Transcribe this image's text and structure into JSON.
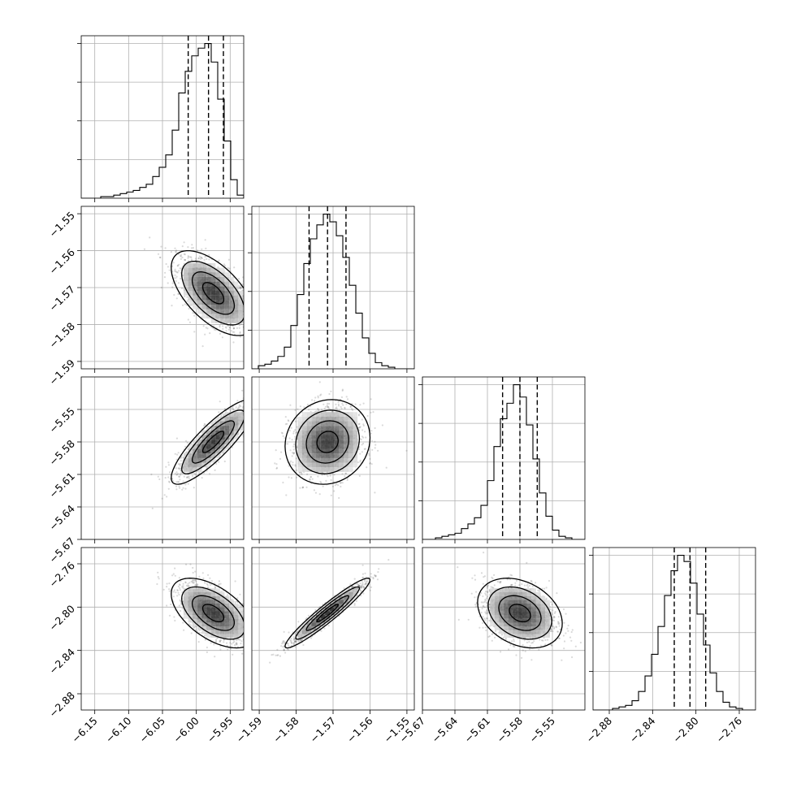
{
  "chart_data": {
    "type": "corner",
    "parameters": [
      {
        "index": 0,
        "mean": -5.975,
        "sd": 0.027,
        "range": [
          -6.17,
          -5.93
        ],
        "ticks": [
          "−6.15",
          "−6.10",
          "−6.05",
          "−6.00",
          "−5.95"
        ],
        "tick_values": [
          -6.15,
          -6.1,
          -6.05,
          -6.0,
          -5.95
        ],
        "quantiles": [
          -6.012,
          -5.982,
          -5.96
        ],
        "histogram_bin_counts": [
          0,
          0,
          0,
          1,
          1,
          2,
          3,
          4,
          5,
          7,
          9,
          14,
          20,
          28,
          44,
          68,
          82,
          92,
          97,
          100,
          88,
          64,
          37,
          12,
          2
        ]
      },
      {
        "index": 1,
        "mean": -1.5715,
        "sd": 0.005,
        "range": [
          -1.592,
          -1.548
        ],
        "ticks": [
          "−1.59",
          "−1.58",
          "−1.57",
          "−1.56",
          "−1.55"
        ],
        "tick_values": [
          -1.59,
          -1.58,
          -1.57,
          -1.56,
          -1.55
        ],
        "quantiles": [
          -1.5765,
          -1.5715,
          -1.5665
        ],
        "histogram_bin_counts": [
          0,
          2,
          3,
          5,
          8,
          14,
          28,
          48,
          68,
          84,
          93,
          100,
          95,
          86,
          72,
          54,
          36,
          20,
          10,
          4,
          2,
          1,
          0,
          0,
          0
        ]
      },
      {
        "index": 2,
        "mean": -5.58,
        "sd": 0.017,
        "range": [
          -5.67,
          -5.52
        ],
        "ticks": [
          "−5.67",
          "−5.64",
          "−5.61",
          "−5.58",
          "−5.55"
        ],
        "tick_values": [
          -5.67,
          -5.64,
          -5.61,
          -5.58,
          -5.55
        ],
        "quantiles": [
          -5.596,
          -5.58,
          -5.564
        ],
        "histogram_bin_counts": [
          0,
          0,
          1,
          2,
          3,
          4,
          7,
          10,
          14,
          22,
          38,
          60,
          78,
          88,
          100,
          92,
          74,
          52,
          30,
          15,
          6,
          2,
          1,
          0,
          0
        ]
      },
      {
        "index": 3,
        "mean": -2.8055,
        "sd": 0.014,
        "range": [
          -2.895,
          -2.745
        ],
        "ticks": [
          "−2.88",
          "−2.84",
          "−2.80",
          "−2.76"
        ],
        "tick_values": [
          -2.88,
          -2.84,
          -2.8,
          -2.76
        ],
        "quantiles": [
          -2.82,
          -2.8055,
          -2.791
        ],
        "histogram_bin_counts": [
          0,
          0,
          0,
          1,
          2,
          3,
          6,
          12,
          22,
          36,
          54,
          74,
          90,
          100,
          96,
          82,
          62,
          42,
          24,
          12,
          5,
          2,
          1,
          0,
          0
        ]
      }
    ],
    "correlations": {
      "1,0": -0.6,
      "2,0": 0.85,
      "2,1": 0.1,
      "3,0": -0.55,
      "3,1": 0.95,
      "3,2": -0.3
    },
    "contour_levels_sigma": [
      0.5,
      1.0,
      1.5,
      2.0
    ],
    "grid": true,
    "histogram_bins": 25
  }
}
